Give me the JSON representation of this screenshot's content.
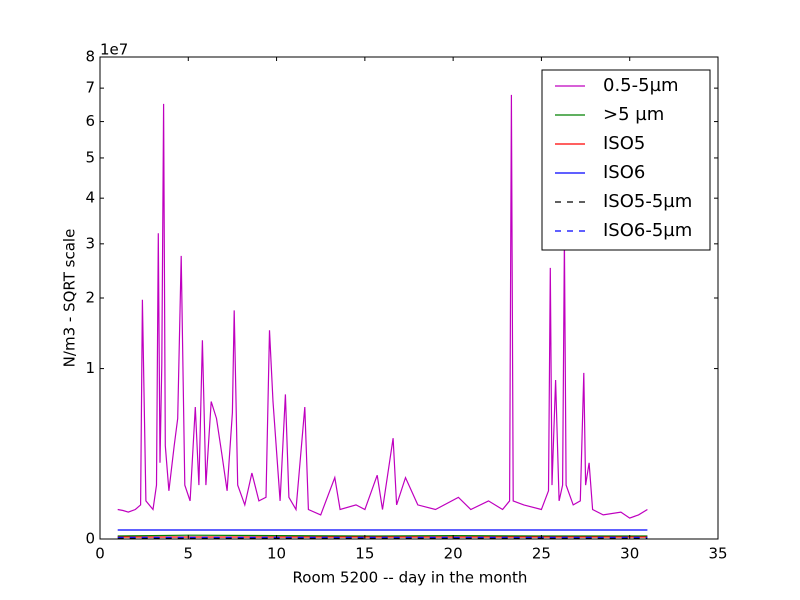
{
  "chart_data": {
    "type": "line",
    "xlabel": "Room 5200 -- day in the month",
    "ylabel": "N/m3 - SQRT scale",
    "y_offset_text": "1e7",
    "yscale": "sqrt",
    "xlim": [
      0,
      35
    ],
    "xticks": [
      0,
      5,
      10,
      15,
      20,
      25,
      30,
      35
    ],
    "ylim": [
      0,
      8
    ],
    "yticks": [
      0,
      1,
      2,
      3,
      4,
      5,
      6,
      7,
      8
    ],
    "grid": false,
    "legend": "upper right",
    "series": [
      {
        "name": "0.5-5µm",
        "color": "#bf00bf",
        "linestyle": "solid",
        "x": [
          1,
          1.3,
          1.6,
          2.0,
          2.3,
          2.4,
          2.6,
          3.0,
          3.2,
          3.3,
          3.4,
          3.5,
          3.6,
          3.7,
          3.9,
          4.2,
          4.4,
          4.6,
          4.8,
          5.1,
          5.4,
          5.6,
          5.8,
          6.0,
          6.3,
          6.6,
          6.9,
          7.2,
          7.5,
          7.6,
          7.8,
          8.2,
          8.6,
          9.0,
          9.4,
          9.6,
          9.8,
          10.2,
          10.5,
          10.7,
          11.1,
          11.6,
          11.8,
          12.5,
          13.3,
          13.6,
          14.5,
          15.0,
          15.7,
          16.0,
          16.6,
          16.8,
          17.3,
          18.0,
          19.0,
          20.3,
          21.0,
          22.0,
          22.8,
          23.2,
          23.3,
          23.4,
          24.0,
          25.0,
          25.4,
          25.5,
          25.6,
          25.8,
          26.0,
          26.2,
          26.3,
          26.4,
          26.8,
          27.2,
          27.4,
          27.5,
          27.7,
          27.9,
          28.5,
          29.5,
          30.0,
          30.5,
          31.0
        ],
        "values": [
          0.03,
          0.028,
          0.025,
          0.03,
          0.04,
          1.97,
          0.05,
          0.03,
          0.1,
          3.22,
          0.2,
          1.05,
          6.52,
          0.3,
          0.08,
          0.3,
          0.5,
          2.76,
          0.1,
          0.05,
          0.6,
          0.1,
          1.36,
          0.1,
          0.65,
          0.5,
          0.25,
          0.08,
          0.55,
          1.8,
          0.1,
          0.04,
          0.15,
          0.05,
          0.06,
          1.5,
          0.65,
          0.05,
          0.72,
          0.06,
          0.03,
          0.6,
          0.03,
          0.02,
          0.13,
          0.03,
          0.04,
          0.03,
          0.14,
          0.03,
          0.35,
          0.04,
          0.13,
          0.04,
          0.03,
          0.06,
          0.03,
          0.05,
          0.03,
          0.05,
          6.79,
          0.05,
          0.04,
          0.03,
          0.08,
          2.53,
          0.1,
          0.87,
          0.05,
          0.1,
          3.08,
          0.1,
          0.04,
          0.05,
          0.95,
          0.1,
          0.2,
          0.03,
          0.02,
          0.025,
          0.015,
          0.02,
          0.03
        ]
      },
      {
        "name": ">5 µm",
        "color": "#008000",
        "linestyle": "solid",
        "x": [
          1,
          5,
          10,
          15,
          20,
          25,
          31
        ],
        "values": [
          0.0003,
          0.0005,
          0.0004,
          0.0003,
          0.0004,
          0.0003,
          0.0003
        ]
      },
      {
        "name": "ISO5",
        "color": "#ff0000",
        "linestyle": "solid",
        "x": [
          1,
          31
        ],
        "values": [
          0.00014,
          0.00014
        ]
      },
      {
        "name": "ISO6",
        "color": "#0000ff",
        "linestyle": "solid",
        "x": [
          1,
          31
        ],
        "values": [
          0.0028,
          0.0028
        ]
      },
      {
        "name": "ISO5-5µm",
        "color": "#000000",
        "linestyle": "dashed",
        "x": [
          1,
          31
        ],
        "values": [
          1e-05,
          1e-05
        ]
      },
      {
        "name": "ISO6-5µm",
        "color": "#0000ff",
        "linestyle": "dashed",
        "x": [
          1,
          31
        ],
        "values": [
          0.0001,
          0.0001
        ]
      }
    ]
  }
}
